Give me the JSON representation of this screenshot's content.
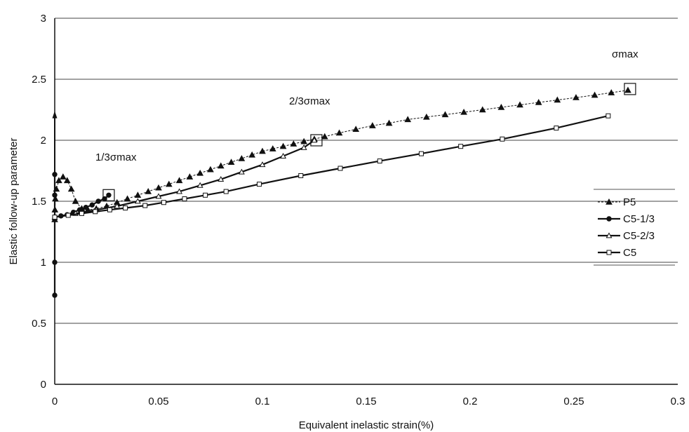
{
  "chart_data": {
    "type": "line",
    "xlabel": "Equivalent inelastic strain(%)",
    "ylabel": "Elastic follow-up parameter",
    "xlim": [
      0,
      0.3
    ],
    "ylim": [
      0,
      3
    ],
    "x_ticks": [
      "0",
      "0.05",
      "0.1",
      "0.15",
      "0.2",
      "0.25",
      "0.3"
    ],
    "y_ticks": [
      "0",
      "0.5",
      "1",
      "1.5",
      "2",
      "2.5",
      "3"
    ],
    "grid": "horizontal",
    "legend_position": "right",
    "annotations": [
      {
        "text": "σmax",
        "x": 0.277,
        "y": 2.42
      },
      {
        "text": "2/3σmax",
        "x": 0.126,
        "y": 2.0
      },
      {
        "text": "1/3σmax",
        "x": 0.026,
        "y": 1.55
      }
    ],
    "series": [
      {
        "name": "P5",
        "marker": "filled-triangle",
        "line": "thin-dashed",
        "x": [
          0,
          0.0001,
          0.0003,
          0.0008,
          0.002,
          0.004,
          0.006,
          0.008,
          0.01,
          0.013,
          0.016,
          0.02,
          0.025,
          0.03,
          0.035,
          0.04,
          0.045,
          0.05,
          0.055,
          0.06,
          0.065,
          0.07,
          0.075,
          0.08,
          0.085,
          0.09,
          0.095,
          0.1,
          0.105,
          0.11,
          0.115,
          0.12,
          0.125,
          0.13,
          0.137,
          0.145,
          0.153,
          0.161,
          0.17,
          0.179,
          0.188,
          0.197,
          0.206,
          0.215,
          0.224,
          0.233,
          0.242,
          0.251,
          0.26,
          0.268,
          0.276
        ],
        "y": [
          1.35,
          1.43,
          1.52,
          1.6,
          1.67,
          1.7,
          1.67,
          1.6,
          1.5,
          1.44,
          1.43,
          1.44,
          1.46,
          1.49,
          1.52,
          1.55,
          1.58,
          1.61,
          1.64,
          1.67,
          1.7,
          1.73,
          1.76,
          1.79,
          1.82,
          1.85,
          1.88,
          1.91,
          1.93,
          1.95,
          1.97,
          1.99,
          2.01,
          2.03,
          2.06,
          2.09,
          2.12,
          2.14,
          2.17,
          2.19,
          2.21,
          2.23,
          2.25,
          2.27,
          2.29,
          2.31,
          2.33,
          2.35,
          2.37,
          2.39,
          2.41
        ]
      },
      {
        "name": "C5-1/3",
        "marker": "filled-circle",
        "line": "solid-thick",
        "x": [
          0,
          0,
          0,
          0,
          0,
          0,
          0.003,
          0.006,
          0.009,
          0.012,
          0.015,
          0.018,
          0.021,
          0.024,
          0.026
        ],
        "y": [
          0.73,
          1.0,
          1.35,
          1.55,
          1.72,
          1.37,
          1.38,
          1.39,
          1.41,
          1.43,
          1.45,
          1.47,
          1.5,
          1.52,
          1.55
        ]
      },
      {
        "name": "C5-2/3",
        "marker": "open-triangle",
        "line": "solid-thick",
        "x": [
          0,
          0.01,
          0.02,
          0.03,
          0.04,
          0.05,
          0.06,
          0.07,
          0.08,
          0.09,
          0.1,
          0.11,
          0.12,
          0.125
        ],
        "y": [
          1.37,
          1.4,
          1.43,
          1.46,
          1.5,
          1.54,
          1.58,
          1.63,
          1.68,
          1.74,
          1.8,
          1.87,
          1.94,
          2.0
        ]
      },
      {
        "name": "C5",
        "marker": "open-square",
        "line": "solid-thick",
        "x": [
          0,
          0.0065,
          0.013,
          0.0195,
          0.0265,
          0.034,
          0.0435,
          0.0525,
          0.0625,
          0.0725,
          0.0825,
          0.0985,
          0.1185,
          0.1375,
          0.1565,
          0.1765,
          0.1955,
          0.2155,
          0.2415,
          0.2665
        ],
        "y": [
          1.37,
          1.385,
          1.4,
          1.415,
          1.43,
          1.445,
          1.465,
          1.49,
          1.52,
          1.55,
          1.58,
          1.64,
          1.71,
          1.77,
          1.83,
          1.89,
          1.95,
          2.01,
          2.1,
          2.2
        ]
      }
    ]
  }
}
